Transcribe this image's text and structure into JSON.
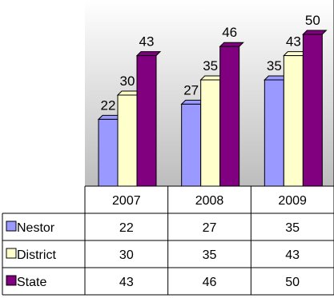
{
  "chart_data": {
    "type": "bar",
    "categories": [
      "2007",
      "2008",
      "2009"
    ],
    "series": [
      {
        "name": "Nestor",
        "values": [
          22,
          27,
          35
        ],
        "color": "#9999ff"
      },
      {
        "name": "District",
        "values": [
          30,
          35,
          43
        ],
        "color": "#ffffcc"
      },
      {
        "name": "State",
        "values": [
          43,
          46,
          50
        ],
        "color": "#800080"
      }
    ],
    "ylim": [
      0,
      50
    ],
    "grid": false,
    "legend": "data table below chart"
  }
}
